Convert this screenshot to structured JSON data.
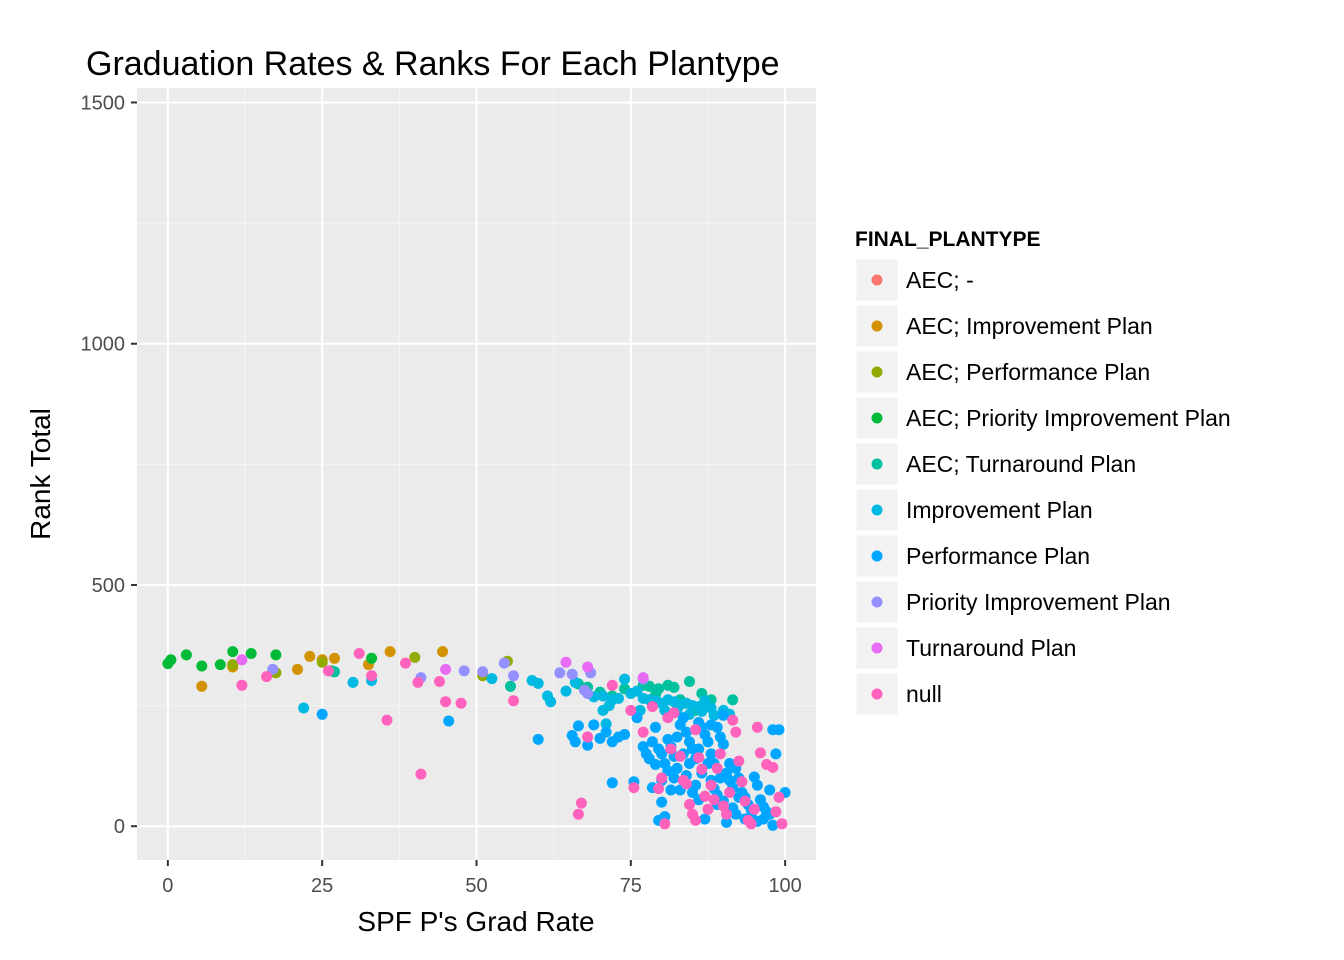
{
  "chart_data": {
    "type": "scatter",
    "title": "Graduation Rates & Ranks For Each Plantype",
    "xlabel": "SPF P's Grad Rate",
    "ylabel": "Rank Total",
    "xlim": [
      -5,
      105
    ],
    "ylim": [
      -70,
      1530
    ],
    "x_ticks": [
      0,
      25,
      50,
      75,
      100
    ],
    "x_tick_labels": [
      "0",
      "25",
      "50",
      "75",
      "100"
    ],
    "y_ticks": [
      0,
      500,
      1000,
      1500
    ],
    "y_tick_labels": [
      "0",
      "500",
      "1000",
      "1500"
    ],
    "grid": true,
    "legend": {
      "title": "FINAL_PLANTYPE",
      "position": "right"
    },
    "series": [
      {
        "name": "AEC; -",
        "color": "#F8766D",
        "points": []
      },
      {
        "name": "AEC; Improvement Plan",
        "color": "#D39200",
        "points": [
          [
            5.5,
            290
          ],
          [
            10.5,
            330
          ],
          [
            17,
            320
          ],
          [
            21,
            325
          ],
          [
            23,
            352
          ],
          [
            25,
            345
          ],
          [
            27,
            348
          ],
          [
            32.5,
            335
          ],
          [
            36,
            362
          ],
          [
            44.5,
            362
          ]
        ]
      },
      {
        "name": "AEC; Performance Plan",
        "color": "#93AA00",
        "points": [
          [
            10.5,
            335
          ],
          [
            17.5,
            318
          ],
          [
            25,
            340
          ],
          [
            40,
            350
          ],
          [
            51,
            312
          ],
          [
            55,
            342
          ]
        ]
      },
      {
        "name": "AEC; Priority Improvement Plan",
        "color": "#00BA38",
        "points": [
          [
            0,
            337
          ],
          [
            0.5,
            345
          ],
          [
            3,
            355
          ],
          [
            5.5,
            332
          ],
          [
            8.5,
            335
          ],
          [
            10.5,
            362
          ],
          [
            13.5,
            358
          ],
          [
            17.5,
            355
          ],
          [
            26.5,
            322
          ],
          [
            33,
            348
          ]
        ]
      },
      {
        "name": "AEC; Turnaround Plan",
        "color": "#00C19F",
        "points": [
          [
            27,
            320
          ],
          [
            55.5,
            290
          ],
          [
            66.5,
            295
          ],
          [
            70,
            278
          ],
          [
            74,
            285
          ],
          [
            77,
            292
          ],
          [
            78,
            290
          ],
          [
            79.5,
            285
          ],
          [
            81,
            292
          ],
          [
            82,
            288
          ],
          [
            84.5,
            300
          ],
          [
            86.5,
            275
          ],
          [
            91.5,
            262
          ],
          [
            87,
            250
          ],
          [
            83,
            262
          ],
          [
            79,
            272
          ],
          [
            72,
            270
          ],
          [
            68,
            288
          ],
          [
            85.5,
            240
          ],
          [
            88,
            262
          ]
        ]
      },
      {
        "name": "Improvement Plan",
        "color": "#00B9E3",
        "points": [
          [
            22,
            245
          ],
          [
            30,
            298
          ],
          [
            33,
            302
          ],
          [
            52.5,
            306
          ],
          [
            59,
            302
          ],
          [
            60,
            296
          ],
          [
            61.5,
            270
          ],
          [
            62,
            258
          ],
          [
            64.5,
            280
          ],
          [
            66,
            298
          ],
          [
            69,
            268
          ],
          [
            70.5,
            270
          ],
          [
            71.5,
            250
          ],
          [
            72,
            262
          ],
          [
            73,
            265
          ],
          [
            74,
            305
          ],
          [
            75,
            275
          ],
          [
            76,
            280
          ],
          [
            77,
            265
          ],
          [
            78,
            262
          ],
          [
            79,
            260
          ],
          [
            80,
            255
          ],
          [
            81,
            262
          ],
          [
            82,
            258
          ],
          [
            83,
            252
          ],
          [
            84,
            255
          ],
          [
            85,
            250
          ],
          [
            86,
            248
          ],
          [
            87,
            260
          ],
          [
            88,
            245
          ],
          [
            90,
            240
          ],
          [
            91,
            232
          ],
          [
            76.5,
            240
          ],
          [
            78.5,
            250
          ],
          [
            80.5,
            240
          ],
          [
            82.5,
            242
          ],
          [
            84.5,
            232
          ],
          [
            86.5,
            238
          ],
          [
            88.5,
            230
          ],
          [
            70.5,
            240
          ],
          [
            71,
            212
          ]
        ]
      },
      {
        "name": "Performance Plan",
        "color": "#00A6FF",
        "points": [
          [
            25,
            232
          ],
          [
            45.5,
            218
          ],
          [
            60,
            180
          ],
          [
            65.5,
            188
          ],
          [
            66.5,
            208
          ],
          [
            66,
            175
          ],
          [
            68,
            168
          ],
          [
            69,
            210
          ],
          [
            70,
            182
          ],
          [
            71,
            195
          ],
          [
            72,
            175
          ],
          [
            73,
            185
          ],
          [
            74,
            190
          ],
          [
            75.5,
            92
          ],
          [
            72,
            90
          ],
          [
            76,
            225
          ],
          [
            77,
            165
          ],
          [
            77.5,
            150
          ],
          [
            78,
            140
          ],
          [
            78.5,
            175
          ],
          [
            79,
            128
          ],
          [
            79.5,
            160
          ],
          [
            80,
            150
          ],
          [
            80.5,
            130
          ],
          [
            81,
            180
          ],
          [
            81.5,
            165
          ],
          [
            82,
            145
          ],
          [
            82.5,
            120
          ],
          [
            83,
            210
          ],
          [
            83.5,
            225
          ],
          [
            84,
            195
          ],
          [
            84.5,
            175
          ],
          [
            85,
            160
          ],
          [
            85.5,
            140
          ],
          [
            86,
            215
          ],
          [
            86.5,
            205
          ],
          [
            87,
            190
          ],
          [
            87.5,
            175
          ],
          [
            88,
            150
          ],
          [
            88.5,
            130
          ],
          [
            89,
            205
          ],
          [
            89.5,
            185
          ],
          [
            90,
            170
          ],
          [
            90.5,
            110
          ],
          [
            91,
            95
          ],
          [
            91.5,
            80
          ],
          [
            92,
            120
          ],
          [
            92.5,
            100
          ],
          [
            93,
            70
          ],
          [
            93.5,
            60
          ],
          [
            94,
            45
          ],
          [
            94.5,
            35
          ],
          [
            95,
            102
          ],
          [
            95.5,
            85
          ],
          [
            96,
            55
          ],
          [
            96.5,
            40
          ],
          [
            97,
            30
          ],
          [
            97.5,
            25
          ],
          [
            98,
            200
          ],
          [
            98.5,
            150
          ],
          [
            99,
            200
          ],
          [
            100,
            70
          ],
          [
            98,
            2
          ],
          [
            92,
            25
          ],
          [
            89,
            45
          ],
          [
            86,
            55
          ],
          [
            83,
            75
          ],
          [
            80,
            50
          ],
          [
            79.5,
            12
          ],
          [
            80.5,
            20
          ],
          [
            87,
            15
          ],
          [
            90.5,
            8
          ],
          [
            93.5,
            15
          ],
          [
            95.5,
            10
          ],
          [
            84,
            105
          ],
          [
            85.5,
            85
          ],
          [
            86.5,
            110
          ],
          [
            88,
            95
          ],
          [
            89,
            65
          ],
          [
            90,
            52
          ],
          [
            91.5,
            38
          ],
          [
            84.5,
            130
          ],
          [
            82,
            100
          ],
          [
            78.5,
            80
          ],
          [
            81,
            115
          ],
          [
            83.5,
            150
          ],
          [
            87.5,
            130
          ],
          [
            89.5,
            100
          ],
          [
            91,
            130
          ],
          [
            92.5,
            60
          ],
          [
            94.5,
            22
          ],
          [
            96.5,
            15
          ],
          [
            97.5,
            75
          ],
          [
            88.5,
            78
          ],
          [
            85,
            70
          ],
          [
            86,
            160
          ],
          [
            90,
            230
          ],
          [
            88,
            210
          ],
          [
            82.5,
            185
          ],
          [
            79,
            205
          ],
          [
            80,
            95
          ],
          [
            81.5,
            75
          ]
        ]
      },
      {
        "name": "Priority Improvement Plan",
        "color": "#9590FF",
        "points": [
          [
            17,
            325
          ],
          [
            41,
            308
          ],
          [
            48,
            322
          ],
          [
            51,
            320
          ],
          [
            54.5,
            338
          ],
          [
            56,
            312
          ],
          [
            63.5,
            318
          ],
          [
            65.5,
            315
          ],
          [
            67.5,
            282
          ],
          [
            68,
            275
          ],
          [
            68.5,
            318
          ],
          [
            77,
            305
          ]
        ]
      },
      {
        "name": "Turnaround Plan",
        "color": "#E76BF3",
        "points": [
          [
            12,
            345
          ],
          [
            45,
            325
          ],
          [
            64.5,
            340
          ],
          [
            68,
            330
          ],
          [
            77,
            308
          ]
        ]
      },
      {
        "name": "null",
        "color": "#FF62BC",
        "points": [
          [
            12,
            292
          ],
          [
            16,
            310
          ],
          [
            26,
            322
          ],
          [
            31,
            358
          ],
          [
            33,
            312
          ],
          [
            35.5,
            220
          ],
          [
            38.5,
            338
          ],
          [
            40.5,
            298
          ],
          [
            41,
            108
          ],
          [
            44,
            300
          ],
          [
            45,
            258
          ],
          [
            47.5,
            255
          ],
          [
            56,
            260
          ],
          [
            66.5,
            25
          ],
          [
            67,
            48
          ],
          [
            68,
            185
          ],
          [
            72,
            292
          ],
          [
            75,
            240
          ],
          [
            75.5,
            80
          ],
          [
            77,
            195
          ],
          [
            78.5,
            248
          ],
          [
            79.5,
            78
          ],
          [
            80,
            100
          ],
          [
            80.5,
            5
          ],
          [
            81,
            225
          ],
          [
            82,
            235
          ],
          [
            83,
            145
          ],
          [
            83.5,
            95
          ],
          [
            84,
            88
          ],
          [
            84.5,
            45
          ],
          [
            85,
            25
          ],
          [
            85.5,
            12
          ],
          [
            86,
            142
          ],
          [
            86.5,
            118
          ],
          [
            87,
            62
          ],
          [
            87.5,
            35
          ],
          [
            88,
            85
          ],
          [
            88.5,
            55
          ],
          [
            89,
            120
          ],
          [
            89.5,
            150
          ],
          [
            90,
            42
          ],
          [
            90.5,
            25
          ],
          [
            91,
            70
          ],
          [
            91.5,
            220
          ],
          [
            92,
            195
          ],
          [
            92.5,
            135
          ],
          [
            93,
            92
          ],
          [
            93.5,
            52
          ],
          [
            94,
            12
          ],
          [
            94.5,
            5
          ],
          [
            95,
            35
          ],
          [
            95.5,
            205
          ],
          [
            96,
            152
          ],
          [
            97,
            128
          ],
          [
            98,
            122
          ],
          [
            98.5,
            30
          ],
          [
            99.5,
            5
          ],
          [
            99,
            60
          ],
          [
            85.5,
            200
          ],
          [
            81.5,
            160
          ]
        ]
      }
    ]
  }
}
